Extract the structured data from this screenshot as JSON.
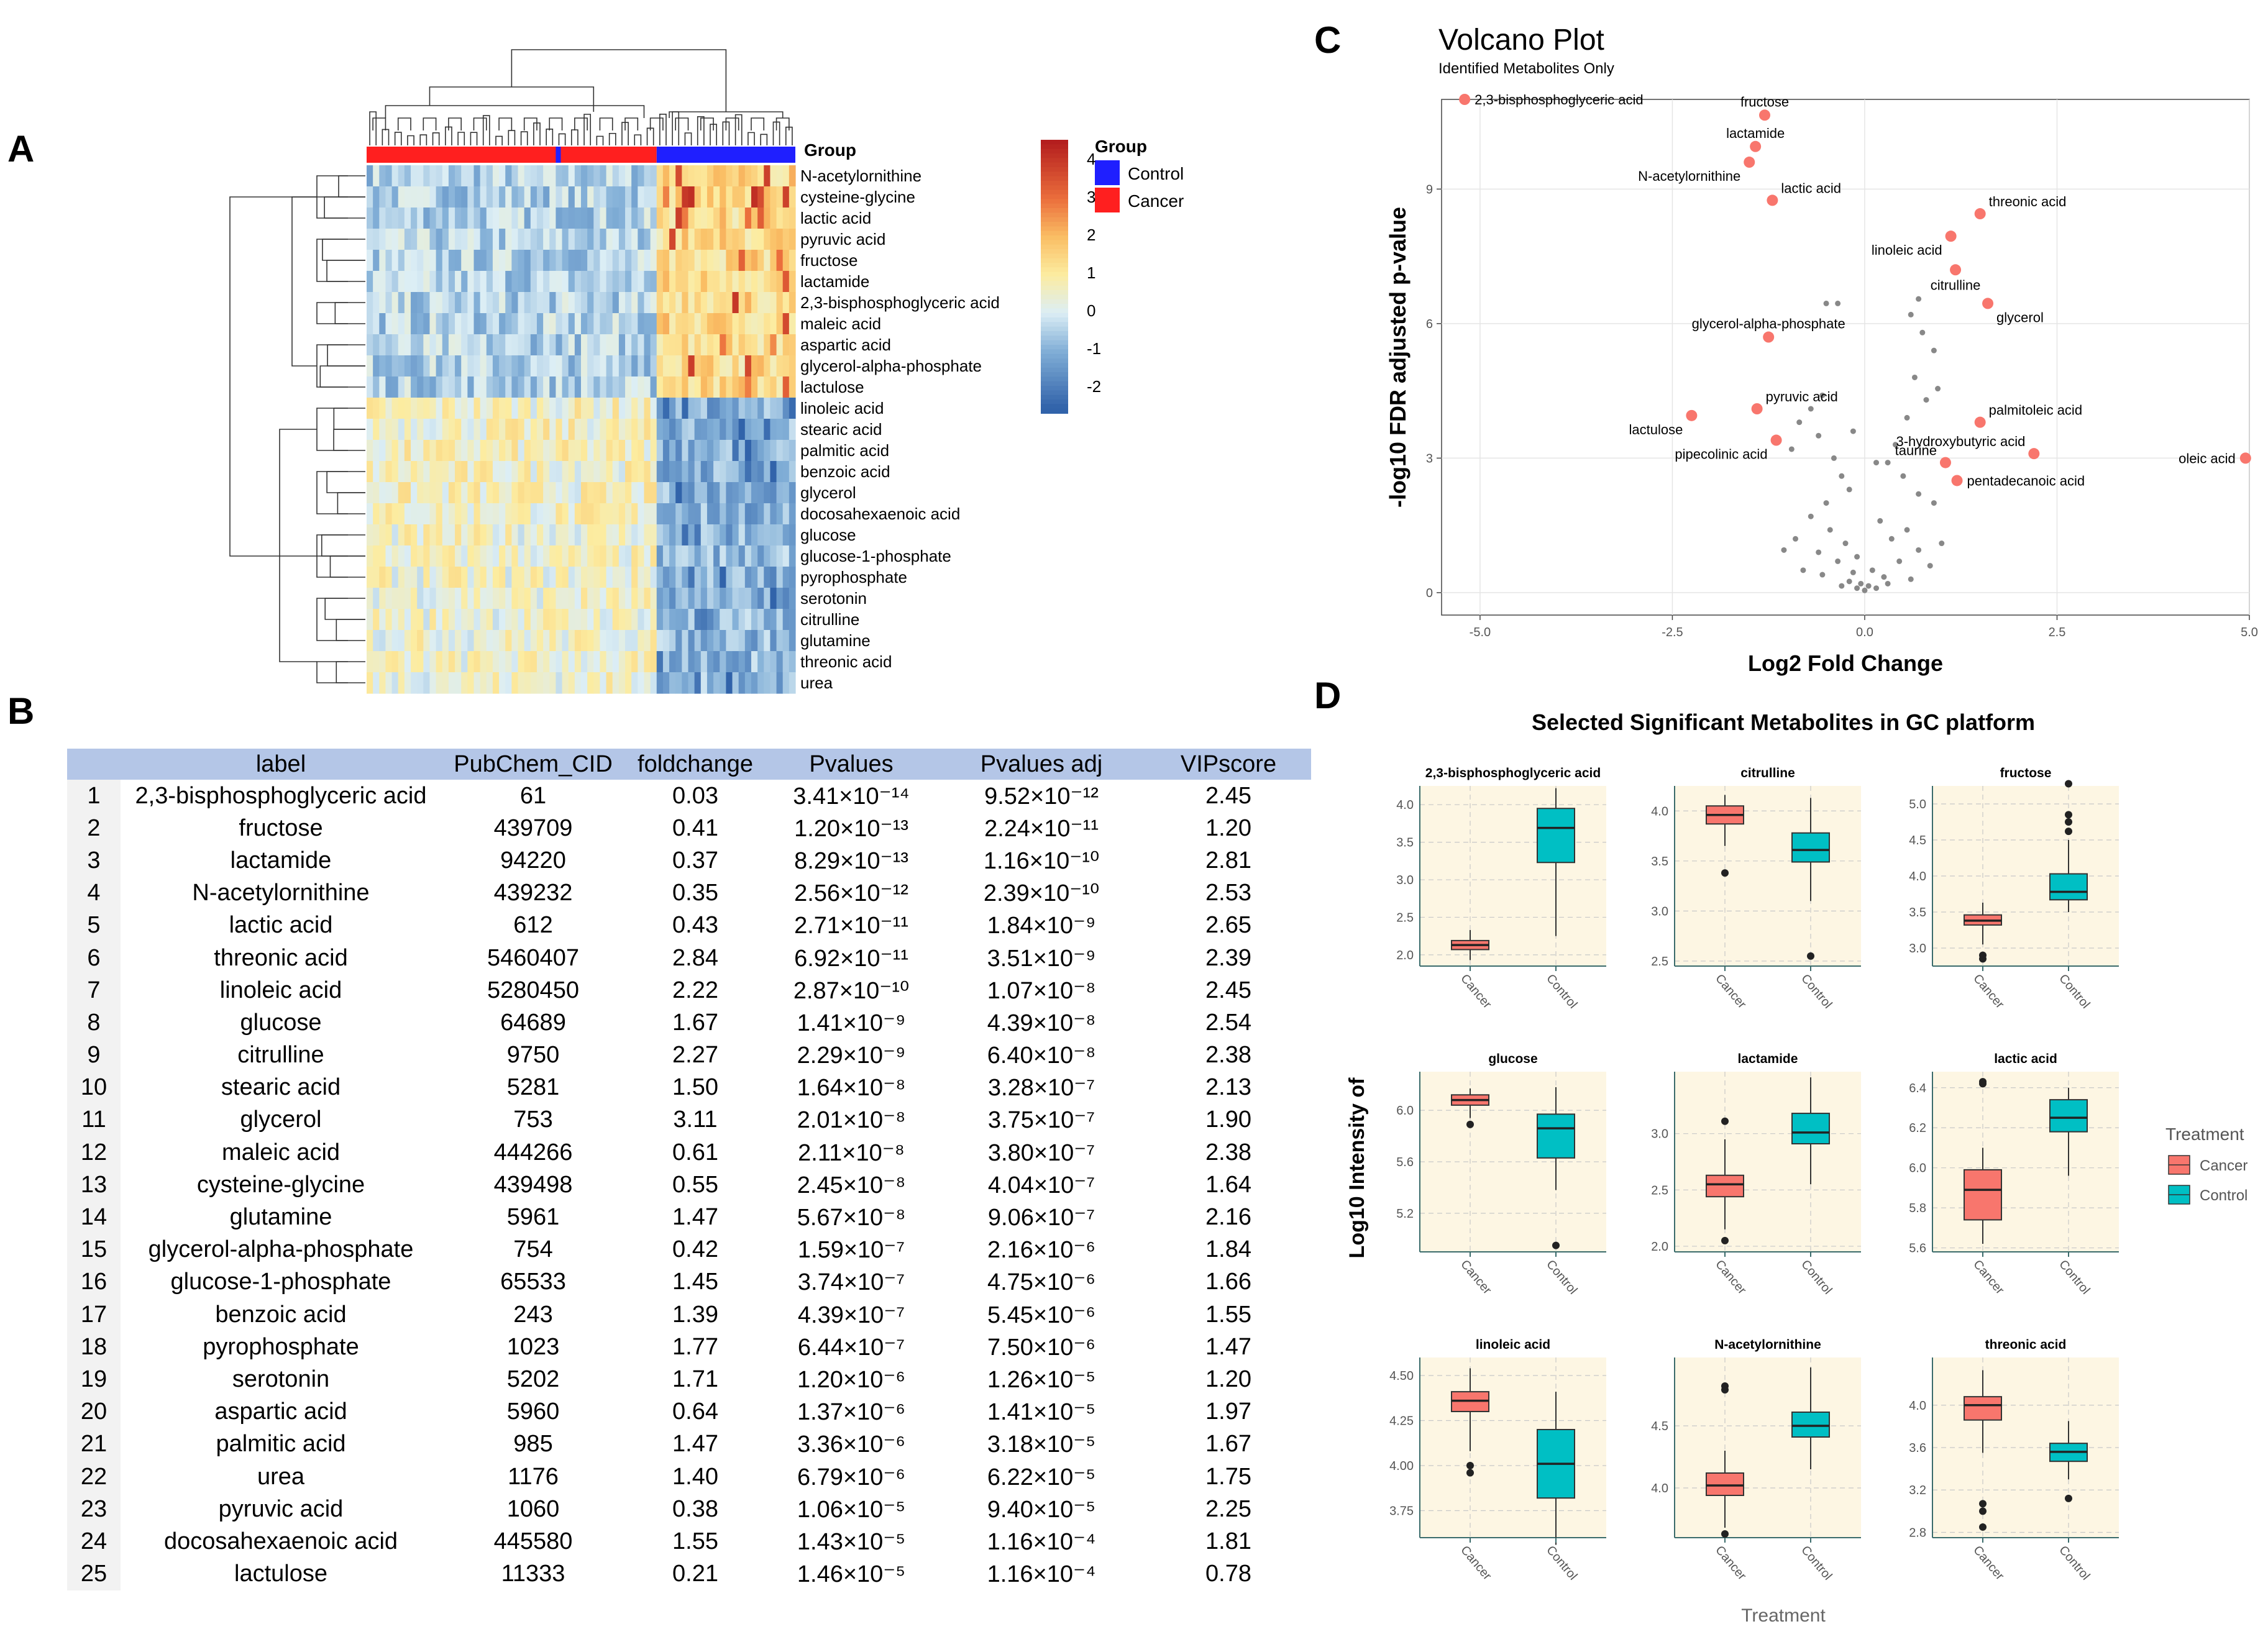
{
  "panels": {
    "A": "A",
    "B": "B",
    "C": "C",
    "D": "D"
  },
  "heatmap": {
    "group_label": "Group",
    "legend_title": "Group",
    "legend_items": [
      {
        "label": "Control",
        "color": "#1f1fff"
      },
      {
        "label": "Cancer",
        "color": "#ff1f1f"
      }
    ],
    "colorbar_ticks": [
      "4",
      "3",
      "2",
      "1",
      "0",
      "-1",
      "-2"
    ],
    "rows": [
      "N-acetylornithine",
      "cysteine-glycine",
      "lactic acid",
      "pyruvic acid",
      "fructose",
      "lactamide",
      "2,3-bisphosphoglyceric acid",
      "maleic acid",
      "aspartic acid",
      "glycerol-alpha-phosphate",
      "lactulose",
      "linoleic acid",
      "stearic acid",
      "palmitic acid",
      "benzoic acid",
      "glycerol",
      "docosahexaenoic acid",
      "glucose",
      "glucose-1-phosphate",
      "pyrophosphate",
      "serotonin",
      "citrulline",
      "glutamine",
      "threonic acid",
      "urea"
    ]
  },
  "table": {
    "headers": [
      "",
      "label",
      "PubChem_CID",
      "foldchange",
      "Pvalues",
      "Pvalues adj",
      "VIPscore"
    ],
    "rows": [
      [
        "1",
        "2,3-bisphosphoglyceric acid",
        "61",
        "0.03",
        "3.41×10⁻¹⁴",
        "9.52×10⁻¹²",
        "2.45"
      ],
      [
        "2",
        "fructose",
        "439709",
        "0.41",
        "1.20×10⁻¹³",
        "2.24×10⁻¹¹",
        "1.20"
      ],
      [
        "3",
        "lactamide",
        "94220",
        "0.37",
        "8.29×10⁻¹³",
        "1.16×10⁻¹⁰",
        "2.81"
      ],
      [
        "4",
        "N-acetylornithine",
        "439232",
        "0.35",
        "2.56×10⁻¹²",
        "2.39×10⁻¹⁰",
        "2.53"
      ],
      [
        "5",
        "lactic acid",
        "612",
        "0.43",
        "2.71×10⁻¹¹",
        "1.84×10⁻⁹",
        "2.65"
      ],
      [
        "6",
        "threonic acid",
        "5460407",
        "2.84",
        "6.92×10⁻¹¹",
        "3.51×10⁻⁹",
        "2.39"
      ],
      [
        "7",
        "linoleic acid",
        "5280450",
        "2.22",
        "2.87×10⁻¹⁰",
        "1.07×10⁻⁸",
        "2.45"
      ],
      [
        "8",
        "glucose",
        "64689",
        "1.67",
        "1.41×10⁻⁹",
        "4.39×10⁻⁸",
        "2.54"
      ],
      [
        "9",
        "citrulline",
        "9750",
        "2.27",
        "2.29×10⁻⁹",
        "6.40×10⁻⁸",
        "2.38"
      ],
      [
        "10",
        "stearic acid",
        "5281",
        "1.50",
        "1.64×10⁻⁸",
        "3.28×10⁻⁷",
        "2.13"
      ],
      [
        "11",
        "glycerol",
        "753",
        "3.11",
        "2.01×10⁻⁸",
        "3.75×10⁻⁷",
        "1.90"
      ],
      [
        "12",
        "maleic acid",
        "444266",
        "0.61",
        "2.11×10⁻⁸",
        "3.80×10⁻⁷",
        "2.38"
      ],
      [
        "13",
        "cysteine-glycine",
        "439498",
        "0.55",
        "2.45×10⁻⁸",
        "4.04×10⁻⁷",
        "1.64"
      ],
      [
        "14",
        "glutamine",
        "5961",
        "1.47",
        "5.67×10⁻⁸",
        "9.06×10⁻⁷",
        "2.16"
      ],
      [
        "15",
        "glycerol-alpha-phosphate",
        "754",
        "0.42",
        "1.59×10⁻⁷",
        "2.16×10⁻⁶",
        "1.84"
      ],
      [
        "16",
        "glucose-1-phosphate",
        "65533",
        "1.45",
        "3.74×10⁻⁷",
        "4.75×10⁻⁶",
        "1.66"
      ],
      [
        "17",
        "benzoic acid",
        "243",
        "1.39",
        "4.39×10⁻⁷",
        "5.45×10⁻⁶",
        "1.55"
      ],
      [
        "18",
        "pyrophosphate",
        "1023",
        "1.77",
        "6.44×10⁻⁷",
        "7.50×10⁻⁶",
        "1.47"
      ],
      [
        "19",
        "serotonin",
        "5202",
        "1.71",
        "1.20×10⁻⁶",
        "1.26×10⁻⁵",
        "1.20"
      ],
      [
        "20",
        "aspartic acid",
        "5960",
        "0.64",
        "1.37×10⁻⁶",
        "1.41×10⁻⁵",
        "1.97"
      ],
      [
        "21",
        "palmitic acid",
        "985",
        "1.47",
        "3.36×10⁻⁶",
        "3.18×10⁻⁵",
        "1.67"
      ],
      [
        "22",
        "urea",
        "1176",
        "1.40",
        "6.79×10⁻⁶",
        "6.22×10⁻⁵",
        "1.75"
      ],
      [
        "23",
        "pyruvic acid",
        "1060",
        "0.38",
        "1.06×10⁻⁵",
        "9.40×10⁻⁵",
        "2.25"
      ],
      [
        "24",
        "docosahexaenoic acid",
        "445580",
        "1.55",
        "1.43×10⁻⁵",
        "1.16×10⁻⁴",
        "1.81"
      ],
      [
        "25",
        "lactulose",
        "11333",
        "0.21",
        "1.46×10⁻⁵",
        "1.16×10⁻⁴",
        "0.78"
      ]
    ]
  },
  "chart_data": [
    {
      "type": "scatter",
      "title": "Volcano Plot",
      "subtitle": "Identified Metabolites Only",
      "xlabel": "Log2 Fold Change",
      "ylabel": "-log10 FDR adjusted p-value",
      "xlim": [
        -5.5,
        5.0
      ],
      "ylim": [
        -0.5,
        11.0
      ],
      "xticks": [
        "-5.0",
        "-2.5",
        "0.0",
        "2.5",
        "5.0"
      ],
      "xtick_values": [
        -5.0,
        -2.5,
        0.0,
        2.5,
        5.0
      ],
      "yticks": [
        "0",
        "3",
        "6",
        "9"
      ],
      "ytick_values": [
        0,
        3,
        6,
        9
      ],
      "highlight_color": "#f8766d",
      "background_color": "#888888",
      "points": [
        {
          "label": "2,3-bisphosphoglyceric acid",
          "x": -5.2,
          "y": 11.0,
          "label_pos": "right"
        },
        {
          "label": "fructose",
          "x": -1.3,
          "y": 10.65,
          "label_pos": "above"
        },
        {
          "label": "lactamide",
          "x": -1.42,
          "y": 9.95,
          "label_pos": "above"
        },
        {
          "label": "N-acetylornithine",
          "x": -1.5,
          "y": 9.6,
          "label_pos": "below-left"
        },
        {
          "label": "lactic acid",
          "x": -1.2,
          "y": 8.75,
          "label_pos": "above-right"
        },
        {
          "label": "threonic acid",
          "x": 1.5,
          "y": 8.45,
          "label_pos": "above-right"
        },
        {
          "label": "linoleic acid",
          "x": 1.12,
          "y": 7.95,
          "label_pos": "below-left"
        },
        {
          "label": "citrulline",
          "x": 1.18,
          "y": 7.2,
          "label_pos": "below"
        },
        {
          "label": "glycerol",
          "x": 1.6,
          "y": 6.45,
          "label_pos": "below-right"
        },
        {
          "label": "glycerol-alpha-phosphate",
          "x": -1.25,
          "y": 5.7,
          "label_pos": "above"
        },
        {
          "label": "pyruvic acid",
          "x": -1.4,
          "y": 4.1,
          "label_pos": "above-right"
        },
        {
          "label": "lactulose",
          "x": -2.25,
          "y": 3.95,
          "label_pos": "below-left"
        },
        {
          "label": "palmitoleic acid",
          "x": 1.5,
          "y": 3.8,
          "label_pos": "above-right"
        },
        {
          "label": "pipecolinic acid",
          "x": -1.15,
          "y": 3.4,
          "label_pos": "below-left"
        },
        {
          "label": "3-hydroxybutyric acid",
          "x": 2.2,
          "y": 3.1,
          "label_pos": "above-left"
        },
        {
          "label": "oleic acid",
          "x": 4.95,
          "y": 3.0,
          "label_pos": "left"
        },
        {
          "label": "taurine",
          "x": 1.05,
          "y": 2.9,
          "label_pos": "above-left"
        },
        {
          "label": "pentadecanoic acid",
          "x": 1.2,
          "y": 2.5,
          "label_pos": "right"
        }
      ],
      "background_points": [
        [
          -0.5,
          6.45
        ],
        [
          -0.35,
          6.45
        ],
        [
          0.7,
          6.55
        ],
        [
          0.6,
          6.2
        ],
        [
          0.75,
          5.8
        ],
        [
          0.9,
          5.4
        ],
        [
          0.65,
          4.8
        ],
        [
          0.95,
          4.55
        ],
        [
          0.8,
          4.3
        ],
        [
          0.55,
          3.9
        ],
        [
          -0.55,
          4.4
        ],
        [
          -0.7,
          4.1
        ],
        [
          -0.85,
          3.8
        ],
        [
          -0.6,
          3.5
        ],
        [
          -0.95,
          3.2
        ],
        [
          -0.4,
          3.0
        ],
        [
          -0.3,
          2.6
        ],
        [
          0.4,
          3.3
        ],
        [
          0.3,
          2.9
        ],
        [
          0.5,
          2.6
        ],
        [
          0.7,
          2.2
        ],
        [
          0.9,
          2.0
        ],
        [
          -0.2,
          2.3
        ],
        [
          -0.5,
          2.0
        ],
        [
          -0.7,
          1.7
        ],
        [
          -0.9,
          1.2
        ],
        [
          -0.45,
          1.4
        ],
        [
          -0.25,
          1.1
        ],
        [
          0.2,
          1.6
        ],
        [
          0.35,
          1.2
        ],
        [
          0.55,
          1.4
        ],
        [
          0.7,
          0.95
        ],
        [
          0.45,
          0.7
        ],
        [
          -0.1,
          0.8
        ],
        [
          -0.35,
          0.7
        ],
        [
          -0.6,
          0.9
        ],
        [
          -0.15,
          0.45
        ],
        [
          0.1,
          0.5
        ],
        [
          0.25,
          0.35
        ],
        [
          -0.05,
          0.2
        ],
        [
          0.05,
          0.15
        ],
        [
          -0.2,
          0.25
        ],
        [
          0.15,
          0.1
        ],
        [
          0.0,
          0.05
        ],
        [
          -0.1,
          0.1
        ],
        [
          0.3,
          0.2
        ],
        [
          -0.3,
          0.15
        ],
        [
          0.6,
          0.3
        ],
        [
          -0.55,
          0.4
        ],
        [
          0.85,
          0.6
        ],
        [
          -0.8,
          0.5
        ],
        [
          1.0,
          1.1
        ],
        [
          -1.05,
          0.95
        ],
        [
          0.15,
          2.9
        ],
        [
          -0.15,
          3.6
        ]
      ]
    },
    {
      "type": "box",
      "title": "Selected Significant Metabolites in GC platform",
      "xlabel": "Treatment",
      "ylabel": "Log10 Intensity of",
      "categories": [
        "Cancer",
        "Control"
      ],
      "legend_title": "Treatment",
      "colors": {
        "Cancer": "#f8766d",
        "Control": "#00bfc4"
      },
      "facets": [
        {
          "title": "2,3-bisphosphoglyceric acid",
          "ylim": [
            1.85,
            4.25
          ],
          "yticks": [
            2.0,
            2.5,
            3.0,
            3.5,
            4.0
          ],
          "ytick_labels": [
            "2.0",
            "2.5",
            "3.0",
            "3.5",
            "4.0"
          ],
          "boxes": [
            {
              "q1": 2.07,
              "med": 2.13,
              "q3": 2.19,
              "wlo": 1.93,
              "whi": 2.33,
              "out": []
            },
            {
              "q1": 3.23,
              "med": 3.69,
              "q3": 3.95,
              "wlo": 2.25,
              "whi": 4.22,
              "out": []
            }
          ]
        },
        {
          "title": "citrulline",
          "ylim": [
            2.45,
            4.25
          ],
          "yticks": [
            2.5,
            3.0,
            3.5,
            4.0
          ],
          "ytick_labels": [
            "2.5",
            "3.0",
            "3.5",
            "4.0"
          ],
          "boxes": [
            {
              "q1": 3.87,
              "med": 3.96,
              "q3": 4.05,
              "wlo": 3.65,
              "whi": 4.16,
              "out": [
                3.38
              ]
            },
            {
              "q1": 3.49,
              "med": 3.61,
              "q3": 3.78,
              "wlo": 3.1,
              "whi": 4.13,
              "out": [
                2.55
              ]
            }
          ]
        },
        {
          "title": "fructose",
          "ylim": [
            2.75,
            5.25
          ],
          "yticks": [
            3.0,
            3.5,
            4.0,
            4.5,
            5.0
          ],
          "ytick_labels": [
            "3.0",
            "3.5",
            "4.0",
            "4.5",
            "5.0"
          ],
          "boxes": [
            {
              "q1": 3.32,
              "med": 3.38,
              "q3": 3.46,
              "wlo": 3.05,
              "whi": 3.63,
              "out": [
                2.9,
                2.85
              ]
            },
            {
              "q1": 3.67,
              "med": 3.78,
              "q3": 4.03,
              "wlo": 3.5,
              "whi": 4.5,
              "out": [
                4.62,
                4.75,
                4.85,
                5.28
              ]
            }
          ]
        },
        {
          "title": "glucose",
          "ylim": [
            4.9,
            6.3
          ],
          "yticks": [
            5.2,
            5.6,
            6.0
          ],
          "ytick_labels": [
            "5.2",
            "5.6",
            "6.0"
          ],
          "boxes": [
            {
              "q1": 6.04,
              "med": 6.08,
              "q3": 6.12,
              "wlo": 5.94,
              "whi": 6.17,
              "out": [
                5.89
              ]
            },
            {
              "q1": 5.63,
              "med": 5.86,
              "q3": 5.97,
              "wlo": 5.38,
              "whi": 6.18,
              "out": [
                4.95
              ]
            }
          ]
        },
        {
          "title": "lactamide",
          "ylim": [
            1.95,
            3.55
          ],
          "yticks": [
            2.0,
            2.5,
            3.0
          ],
          "ytick_labels": [
            "2.0",
            "2.5",
            "3.0"
          ],
          "boxes": [
            {
              "q1": 2.44,
              "med": 2.55,
              "q3": 2.63,
              "wlo": 2.15,
              "whi": 2.95,
              "out": [
                2.05,
                3.11
              ]
            },
            {
              "q1": 2.91,
              "med": 3.01,
              "q3": 3.18,
              "wlo": 2.55,
              "whi": 3.5,
              "out": []
            }
          ]
        },
        {
          "title": "lactic acid",
          "ylim": [
            5.58,
            6.48
          ],
          "yticks": [
            5.6,
            5.8,
            6.0,
            6.2,
            6.4
          ],
          "ytick_labels": [
            "5.6",
            "5.8",
            "6.0",
            "6.2",
            "6.4"
          ],
          "boxes": [
            {
              "q1": 5.74,
              "med": 5.89,
              "q3": 5.99,
              "wlo": 5.62,
              "whi": 6.1,
              "out": [
                6.42,
                6.43
              ]
            },
            {
              "q1": 6.18,
              "med": 6.25,
              "q3": 6.34,
              "wlo": 5.96,
              "whi": 6.4,
              "out": []
            }
          ]
        },
        {
          "title": "linoleic acid",
          "ylim": [
            3.6,
            4.6
          ],
          "yticks": [
            3.75,
            4.0,
            4.25,
            4.5
          ],
          "ytick_labels": [
            "3.75",
            "4.00",
            "4.25",
            "4.50"
          ],
          "boxes": [
            {
              "q1": 4.3,
              "med": 4.36,
              "q3": 4.41,
              "wlo": 4.08,
              "whi": 4.54,
              "out": [
                4.0,
                3.96
              ]
            },
            {
              "q1": 3.82,
              "med": 4.01,
              "q3": 4.2,
              "wlo": 3.56,
              "whi": 4.41,
              "out": []
            }
          ]
        },
        {
          "title": "N-acetylornithine",
          "ylim": [
            3.6,
            5.05
          ],
          "yticks": [
            4.0,
            4.5
          ],
          "ytick_labels": [
            "4.0",
            "4.5"
          ],
          "boxes": [
            {
              "q1": 3.94,
              "med": 4.02,
              "q3": 4.12,
              "wlo": 3.68,
              "whi": 4.3,
              "out": [
                3.63,
                4.79,
                4.82
              ]
            },
            {
              "q1": 4.41,
              "med": 4.5,
              "q3": 4.61,
              "wlo": 4.15,
              "whi": 4.97,
              "out": []
            }
          ]
        },
        {
          "title": "threonic acid",
          "ylim": [
            2.75,
            4.45
          ],
          "yticks": [
            2.8,
            3.2,
            3.6,
            4.0
          ],
          "ytick_labels": [
            "2.8",
            "3.2",
            "3.6",
            "4.0"
          ],
          "boxes": [
            {
              "q1": 3.86,
              "med": 4.0,
              "q3": 4.08,
              "wlo": 3.55,
              "whi": 4.33,
              "out": [
                3.07,
                3.0,
                2.85
              ]
            },
            {
              "q1": 3.47,
              "med": 3.56,
              "q3": 3.64,
              "wlo": 3.3,
              "whi": 3.85,
              "out": [
                3.12
              ]
            }
          ]
        }
      ]
    }
  ]
}
